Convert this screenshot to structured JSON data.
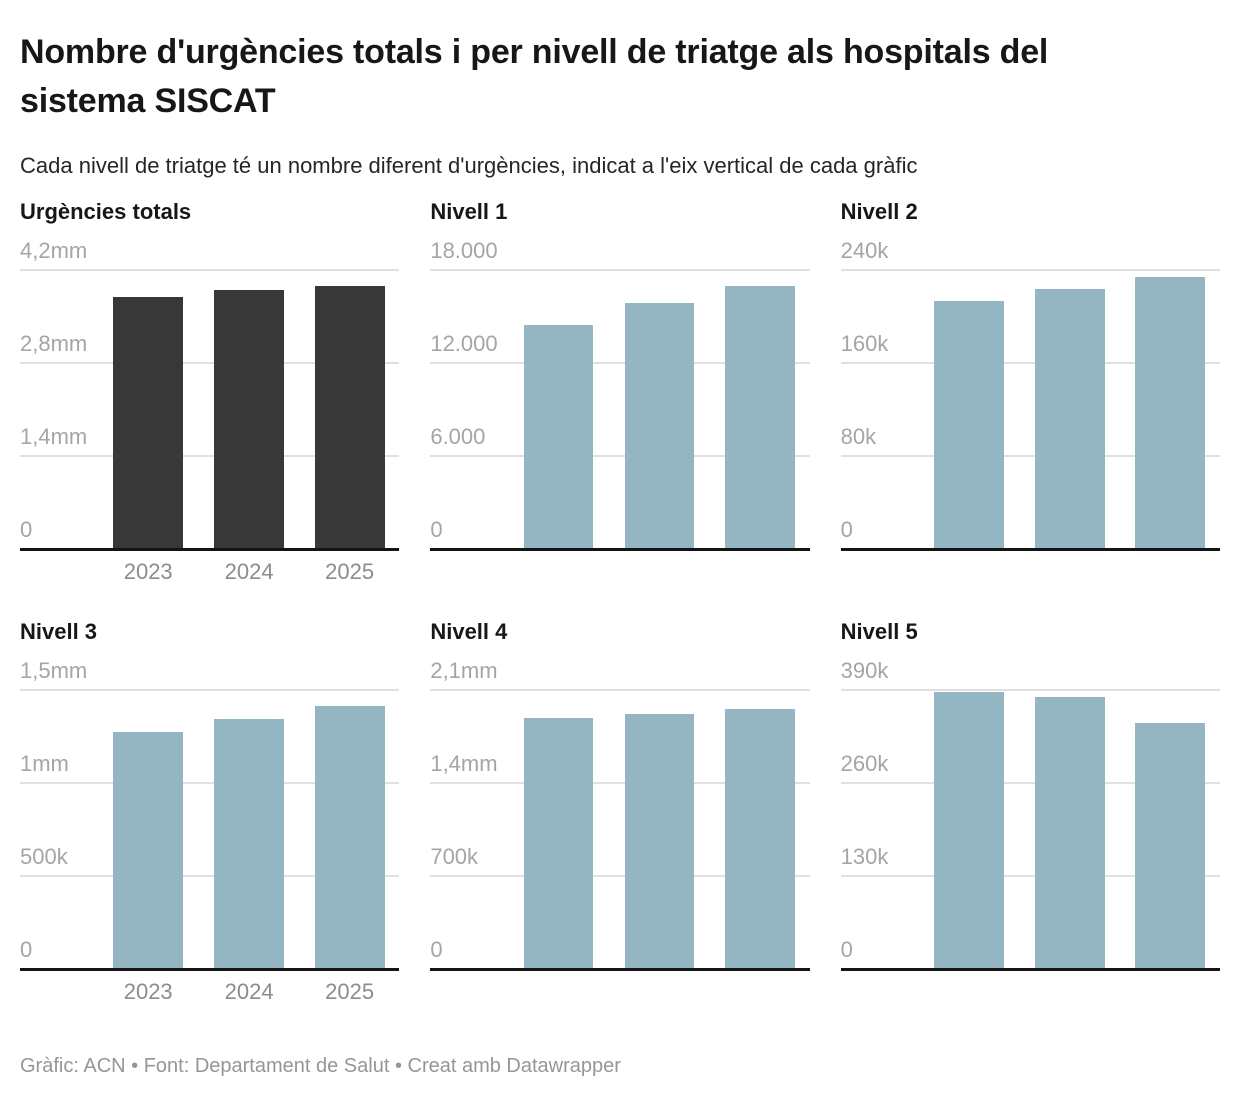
{
  "header": {
    "title": "Nombre d'urgències totals i per nivell de triatge als hospitals del sistema SISCAT",
    "subtitle": "Cada nivell de triatge té un nombre diferent d'urgències, indicat a l'eix vertical de cada gràfic"
  },
  "footer": {
    "text": "Gràfic: ACN • Font: Departament de Salut • Creat amb Datawrapper"
  },
  "colors": {
    "total_bar": "#383838",
    "level_bar": "#94b6c3",
    "gridline": "#e0e0e0",
    "baseline": "#141414",
    "tick_label": "#a5a5a5",
    "year_label": "#8c8c8c"
  },
  "chart_data": [
    {
      "type": "bar",
      "title": "Urgències totals",
      "categories": [
        "2023",
        "2024",
        "2025"
      ],
      "values": [
        3780000,
        3880000,
        3950000
      ],
      "ylim": [
        0,
        4200000
      ],
      "yticks": [
        {
          "value": 4200000,
          "label": "4,2mm"
        },
        {
          "value": 2800000,
          "label": "2,8mm"
        },
        {
          "value": 1400000,
          "label": "1,4mm"
        },
        {
          "value": 0,
          "label": "0"
        }
      ],
      "bar_color": "#383838",
      "show_x_labels": true,
      "grid": true,
      "legend": "none"
    },
    {
      "type": "bar",
      "title": "Nivell 1",
      "categories": [
        "2023",
        "2024",
        "2025"
      ],
      "values": [
        14400,
        15800,
        16900
      ],
      "ylim": [
        0,
        18000
      ],
      "yticks": [
        {
          "value": 18000,
          "label": "18.000"
        },
        {
          "value": 12000,
          "label": "12.000"
        },
        {
          "value": 6000,
          "label": "6.000"
        },
        {
          "value": 0,
          "label": "0"
        }
      ],
      "bar_color": "#94b6c3",
      "show_x_labels": false,
      "grid": true,
      "legend": "none"
    },
    {
      "type": "bar",
      "title": "Nivell 2",
      "categories": [
        "2023",
        "2024",
        "2025"
      ],
      "values": [
        212000,
        223000,
        233000
      ],
      "ylim": [
        0,
        240000
      ],
      "yticks": [
        {
          "value": 240000,
          "label": "240k"
        },
        {
          "value": 160000,
          "label": "160k"
        },
        {
          "value": 80000,
          "label": "80k"
        },
        {
          "value": 0,
          "label": "0"
        }
      ],
      "bar_color": "#94b6c3",
      "show_x_labels": false,
      "grid": true,
      "legend": "none"
    },
    {
      "type": "bar",
      "title": "Nivell 3",
      "categories": [
        "2023",
        "2024",
        "2025"
      ],
      "values": [
        1270000,
        1340000,
        1410000
      ],
      "ylim": [
        0,
        1500000
      ],
      "yticks": [
        {
          "value": 1500000,
          "label": "1,5mm"
        },
        {
          "value": 1000000,
          "label": "1mm"
        },
        {
          "value": 500000,
          "label": "500k"
        },
        {
          "value": 0,
          "label": "0"
        }
      ],
      "bar_color": "#94b6c3",
      "show_x_labels": true,
      "grid": true,
      "legend": "none"
    },
    {
      "type": "bar",
      "title": "Nivell 4",
      "categories": [
        "2023",
        "2024",
        "2025"
      ],
      "values": [
        1880000,
        1910000,
        1950000
      ],
      "ylim": [
        0,
        2100000
      ],
      "yticks": [
        {
          "value": 2100000,
          "label": "2,1mm"
        },
        {
          "value": 1400000,
          "label": "1,4mm"
        },
        {
          "value": 700000,
          "label": "700k"
        },
        {
          "value": 0,
          "label": "0"
        }
      ],
      "bar_color": "#94b6c3",
      "show_x_labels": false,
      "grid": true,
      "legend": "none"
    },
    {
      "type": "bar",
      "title": "Nivell 5",
      "categories": [
        "2023",
        "2024",
        "2025"
      ],
      "values": [
        386000,
        378000,
        342000
      ],
      "ylim": [
        0,
        390000
      ],
      "yticks": [
        {
          "value": 390000,
          "label": "390k"
        },
        {
          "value": 260000,
          "label": "260k"
        },
        {
          "value": 130000,
          "label": "130k"
        },
        {
          "value": 0,
          "label": "0"
        }
      ],
      "bar_color": "#94b6c3",
      "show_x_labels": false,
      "grid": true,
      "legend": "none"
    }
  ]
}
